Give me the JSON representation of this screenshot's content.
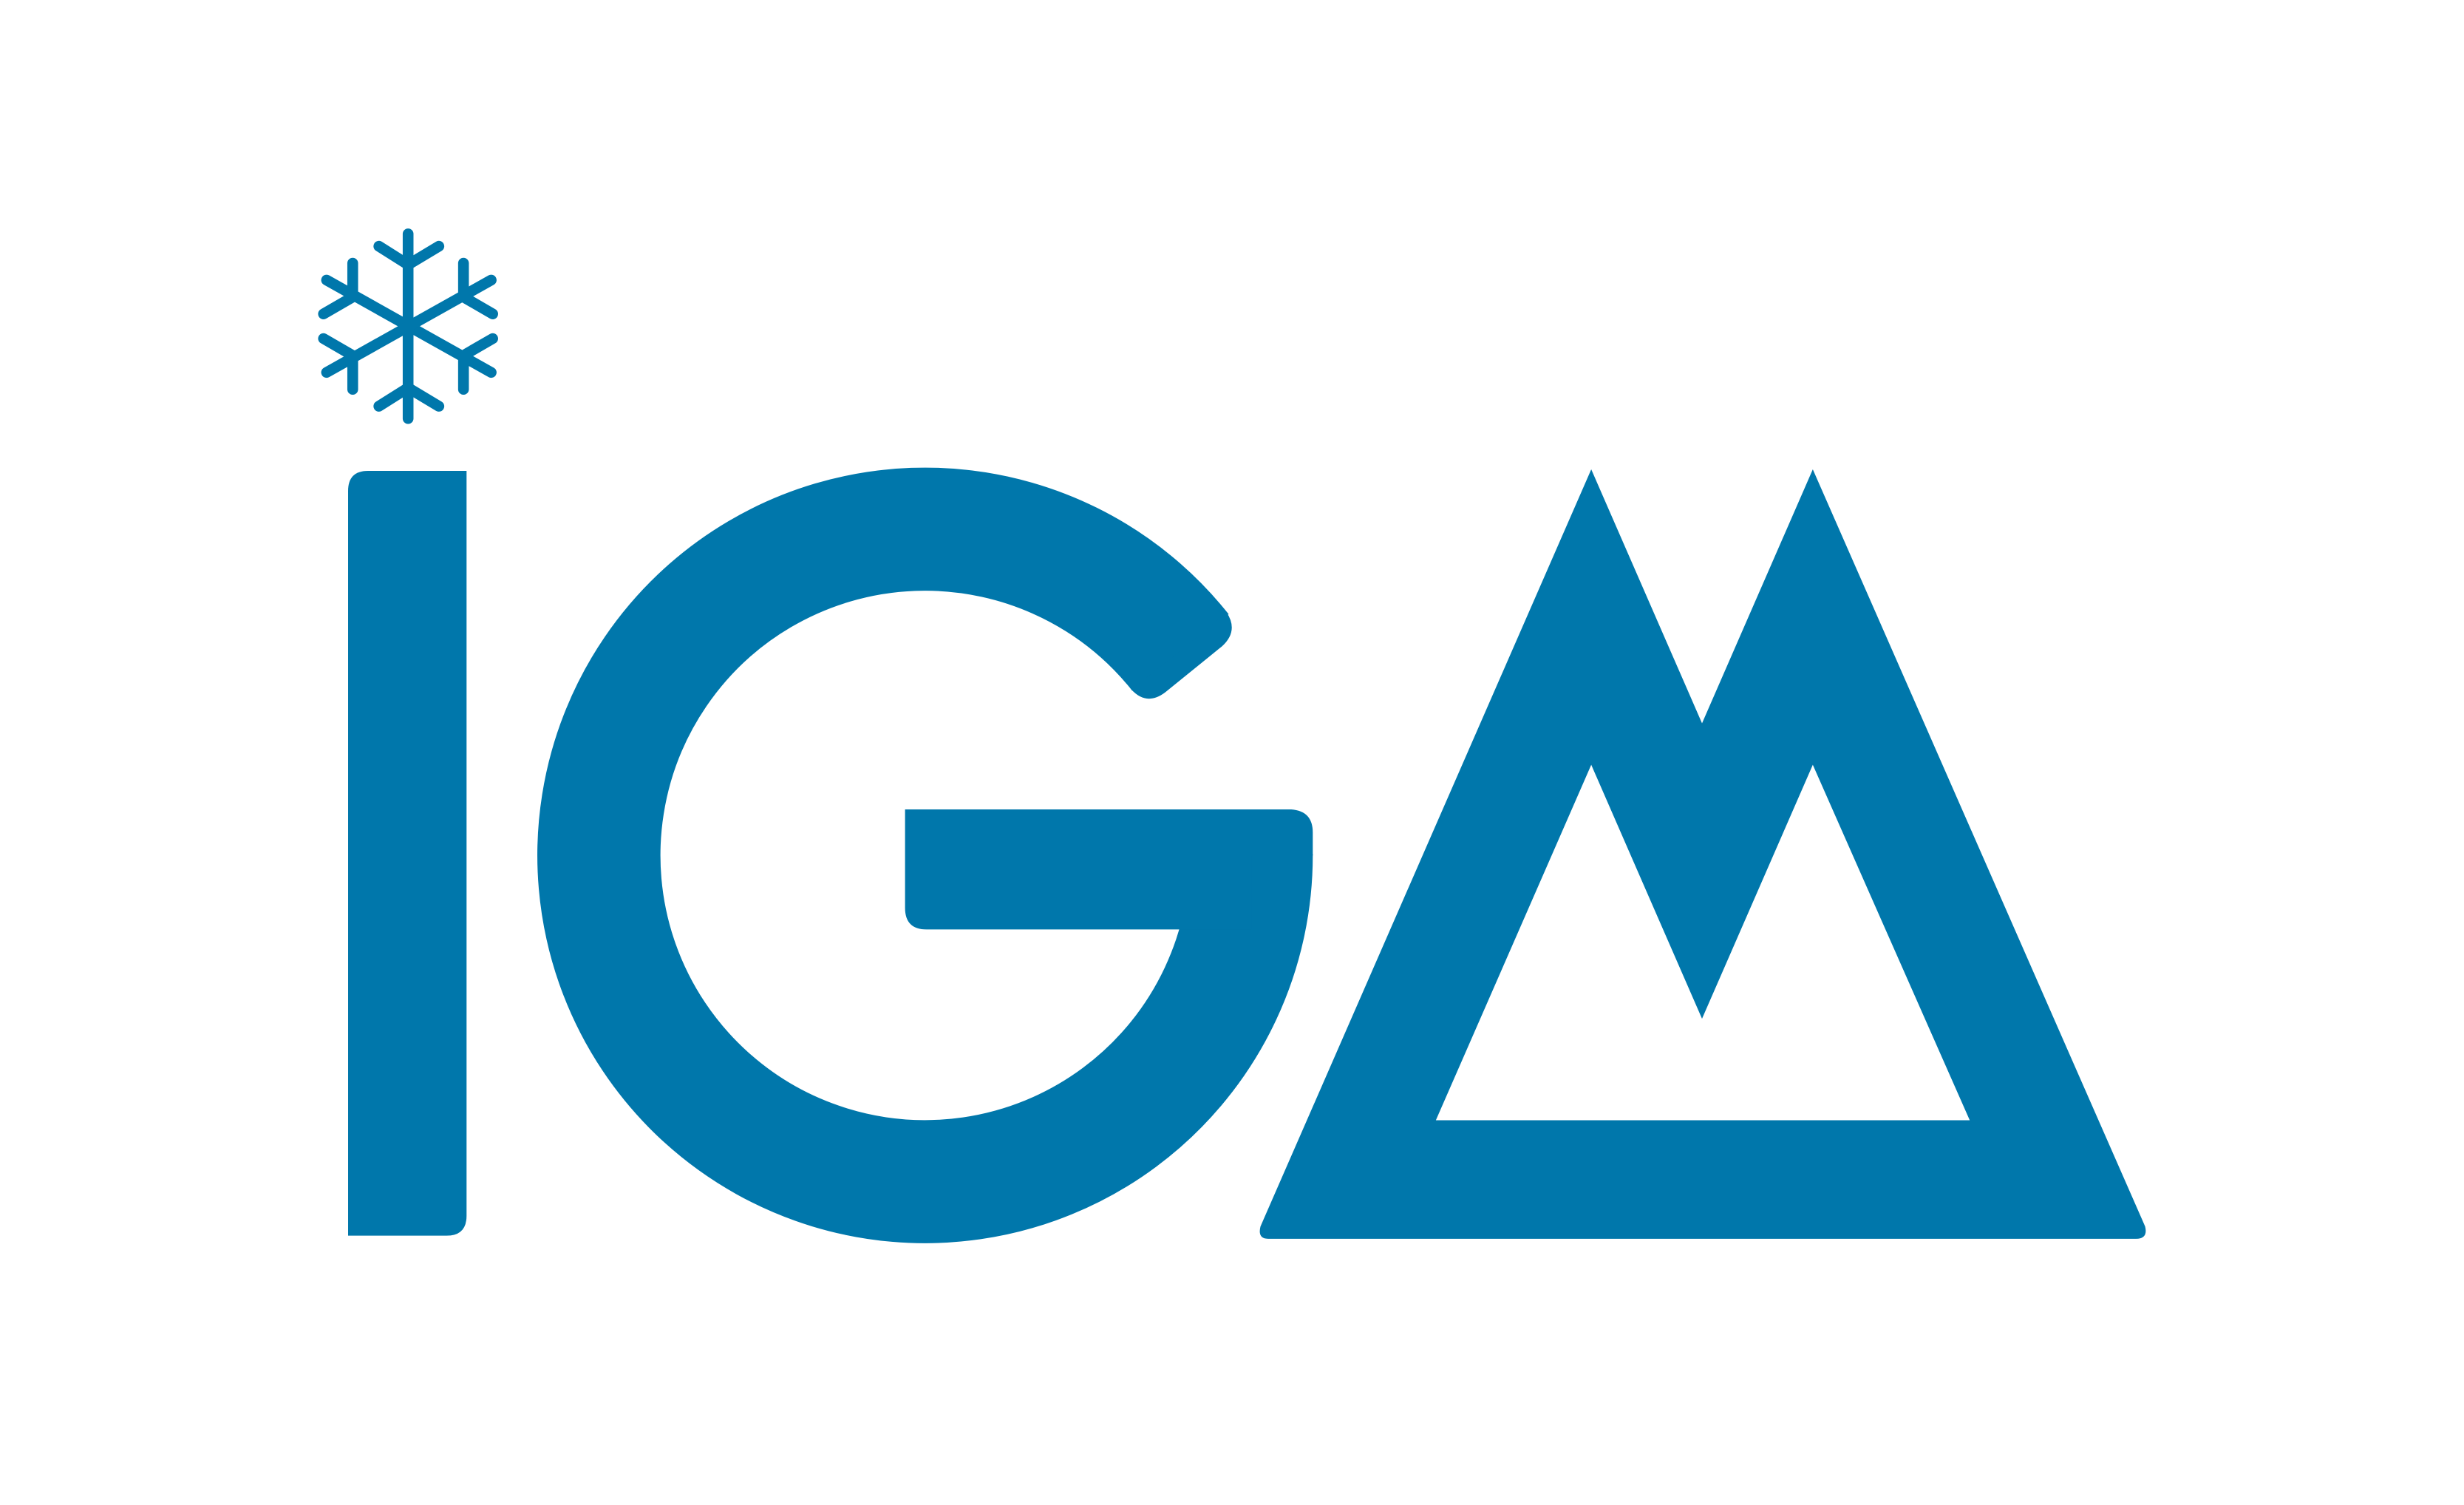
{
  "logo": {
    "wordmark": "IGM",
    "icon": "snowflake-icon",
    "color": "#0077AB",
    "background": "#FFFFFF"
  }
}
